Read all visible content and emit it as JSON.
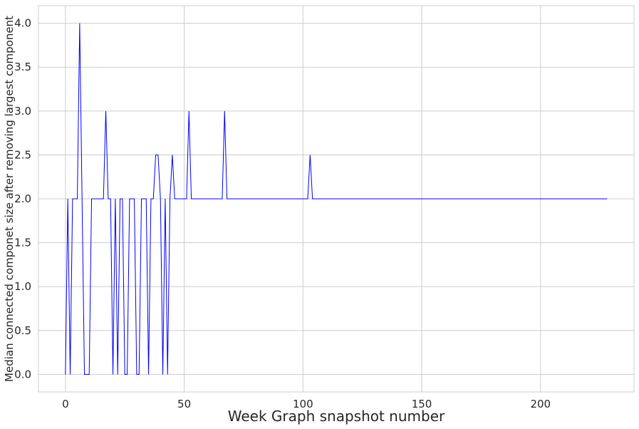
{
  "chart_data": {
    "type": "line",
    "title": "",
    "xlabel": "Week Graph snapshot number",
    "ylabel": "Median connected componet size after removing largest component",
    "xlim": [
      -11.35,
      239.35
    ],
    "ylim": [
      -0.2,
      4.2
    ],
    "xticks": [
      0,
      50,
      100,
      150,
      200
    ],
    "xtick_labels": [
      "0",
      "50",
      "100",
      "150",
      "200"
    ],
    "yticks": [
      0.0,
      0.5,
      1.0,
      1.5,
      2.0,
      2.5,
      3.0,
      3.5,
      4.0
    ],
    "ytick_labels": [
      "0.0",
      "0.5",
      "1.0",
      "1.5",
      "2.0",
      "2.5",
      "3.0",
      "3.5",
      "4.0"
    ],
    "grid": true,
    "line_color": "#0000ff",
    "series": [
      {
        "x": [
          0,
          1,
          2,
          3,
          4,
          5,
          6,
          7,
          8,
          9,
          10,
          11,
          12,
          13,
          14,
          15,
          16,
          17,
          18,
          19,
          20,
          21,
          22,
          23,
          24,
          25,
          26,
          27,
          28,
          29,
          30,
          31,
          32,
          33,
          34,
          35,
          36,
          37,
          38,
          39,
          40,
          41,
          42,
          43,
          44,
          45,
          46,
          47,
          48,
          49,
          50,
          51,
          52,
          53,
          54,
          55,
          56,
          57,
          58,
          59,
          60,
          61,
          62,
          63,
          64,
          65,
          66,
          67,
          68,
          69,
          70,
          100,
          101,
          102,
          103,
          104,
          105,
          228
        ],
        "y": [
          0,
          2,
          0,
          2,
          2,
          2,
          4,
          2,
          0,
          0,
          0,
          2,
          2,
          2,
          2,
          2,
          2,
          3,
          2,
          2,
          0,
          2,
          0,
          2,
          2,
          0,
          0,
          2,
          2,
          2,
          0,
          0,
          2,
          2,
          2,
          0,
          2,
          2,
          2.5,
          2.5,
          2,
          0,
          2,
          0,
          2,
          2.5,
          2,
          2,
          2,
          2,
          2,
          2,
          3,
          2,
          2,
          2,
          2,
          2,
          2,
          2,
          2,
          2,
          2,
          2,
          2,
          2,
          2,
          3,
          2,
          2,
          2,
          2,
          2,
          2,
          2.5,
          2,
          2,
          2
        ]
      }
    ]
  }
}
